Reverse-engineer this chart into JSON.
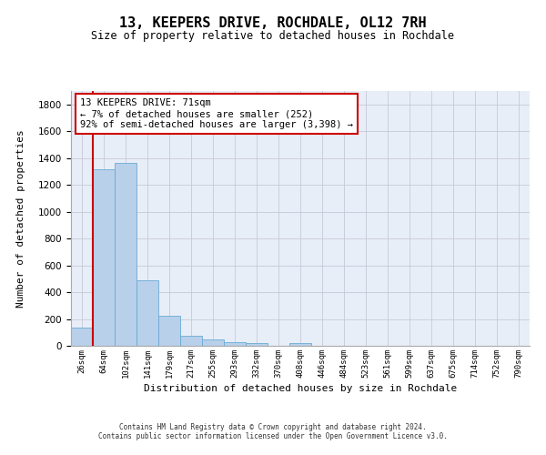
{
  "title": "13, KEEPERS DRIVE, ROCHDALE, OL12 7RH",
  "subtitle": "Size of property relative to detached houses in Rochdale",
  "xlabel": "Distribution of detached houses by size in Rochdale",
  "ylabel": "Number of detached properties",
  "bar_labels": [
    "26sqm",
    "64sqm",
    "102sqm",
    "141sqm",
    "179sqm",
    "217sqm",
    "255sqm",
    "293sqm",
    "332sqm",
    "370sqm",
    "408sqm",
    "446sqm",
    "484sqm",
    "523sqm",
    "561sqm",
    "599sqm",
    "637sqm",
    "675sqm",
    "714sqm",
    "752sqm",
    "790sqm"
  ],
  "bar_values": [
    135,
    1315,
    1365,
    490,
    225,
    75,
    45,
    28,
    18,
    0,
    20,
    0,
    0,
    0,
    0,
    0,
    0,
    0,
    0,
    0,
    0
  ],
  "bar_color": "#b8d0ea",
  "bar_edge_color": "#6aaad4",
  "highlight_color": "#cc0000",
  "annotation_text": "13 KEEPERS DRIVE: 71sqm\n← 7% of detached houses are smaller (252)\n92% of semi-detached houses are larger (3,398) →",
  "annotation_box_color": "#ffffff",
  "annotation_box_edge": "#cc0000",
  "ylim": [
    0,
    1900
  ],
  "yticks": [
    0,
    200,
    400,
    600,
    800,
    1000,
    1200,
    1400,
    1600,
    1800
  ],
  "background_color": "#e8eef8",
  "grid_color": "#c8c8d8",
  "footer_line1": "Contains HM Land Registry data © Crown copyright and database right 2024.",
  "footer_line2": "Contains public sector information licensed under the Open Government Licence v3.0."
}
